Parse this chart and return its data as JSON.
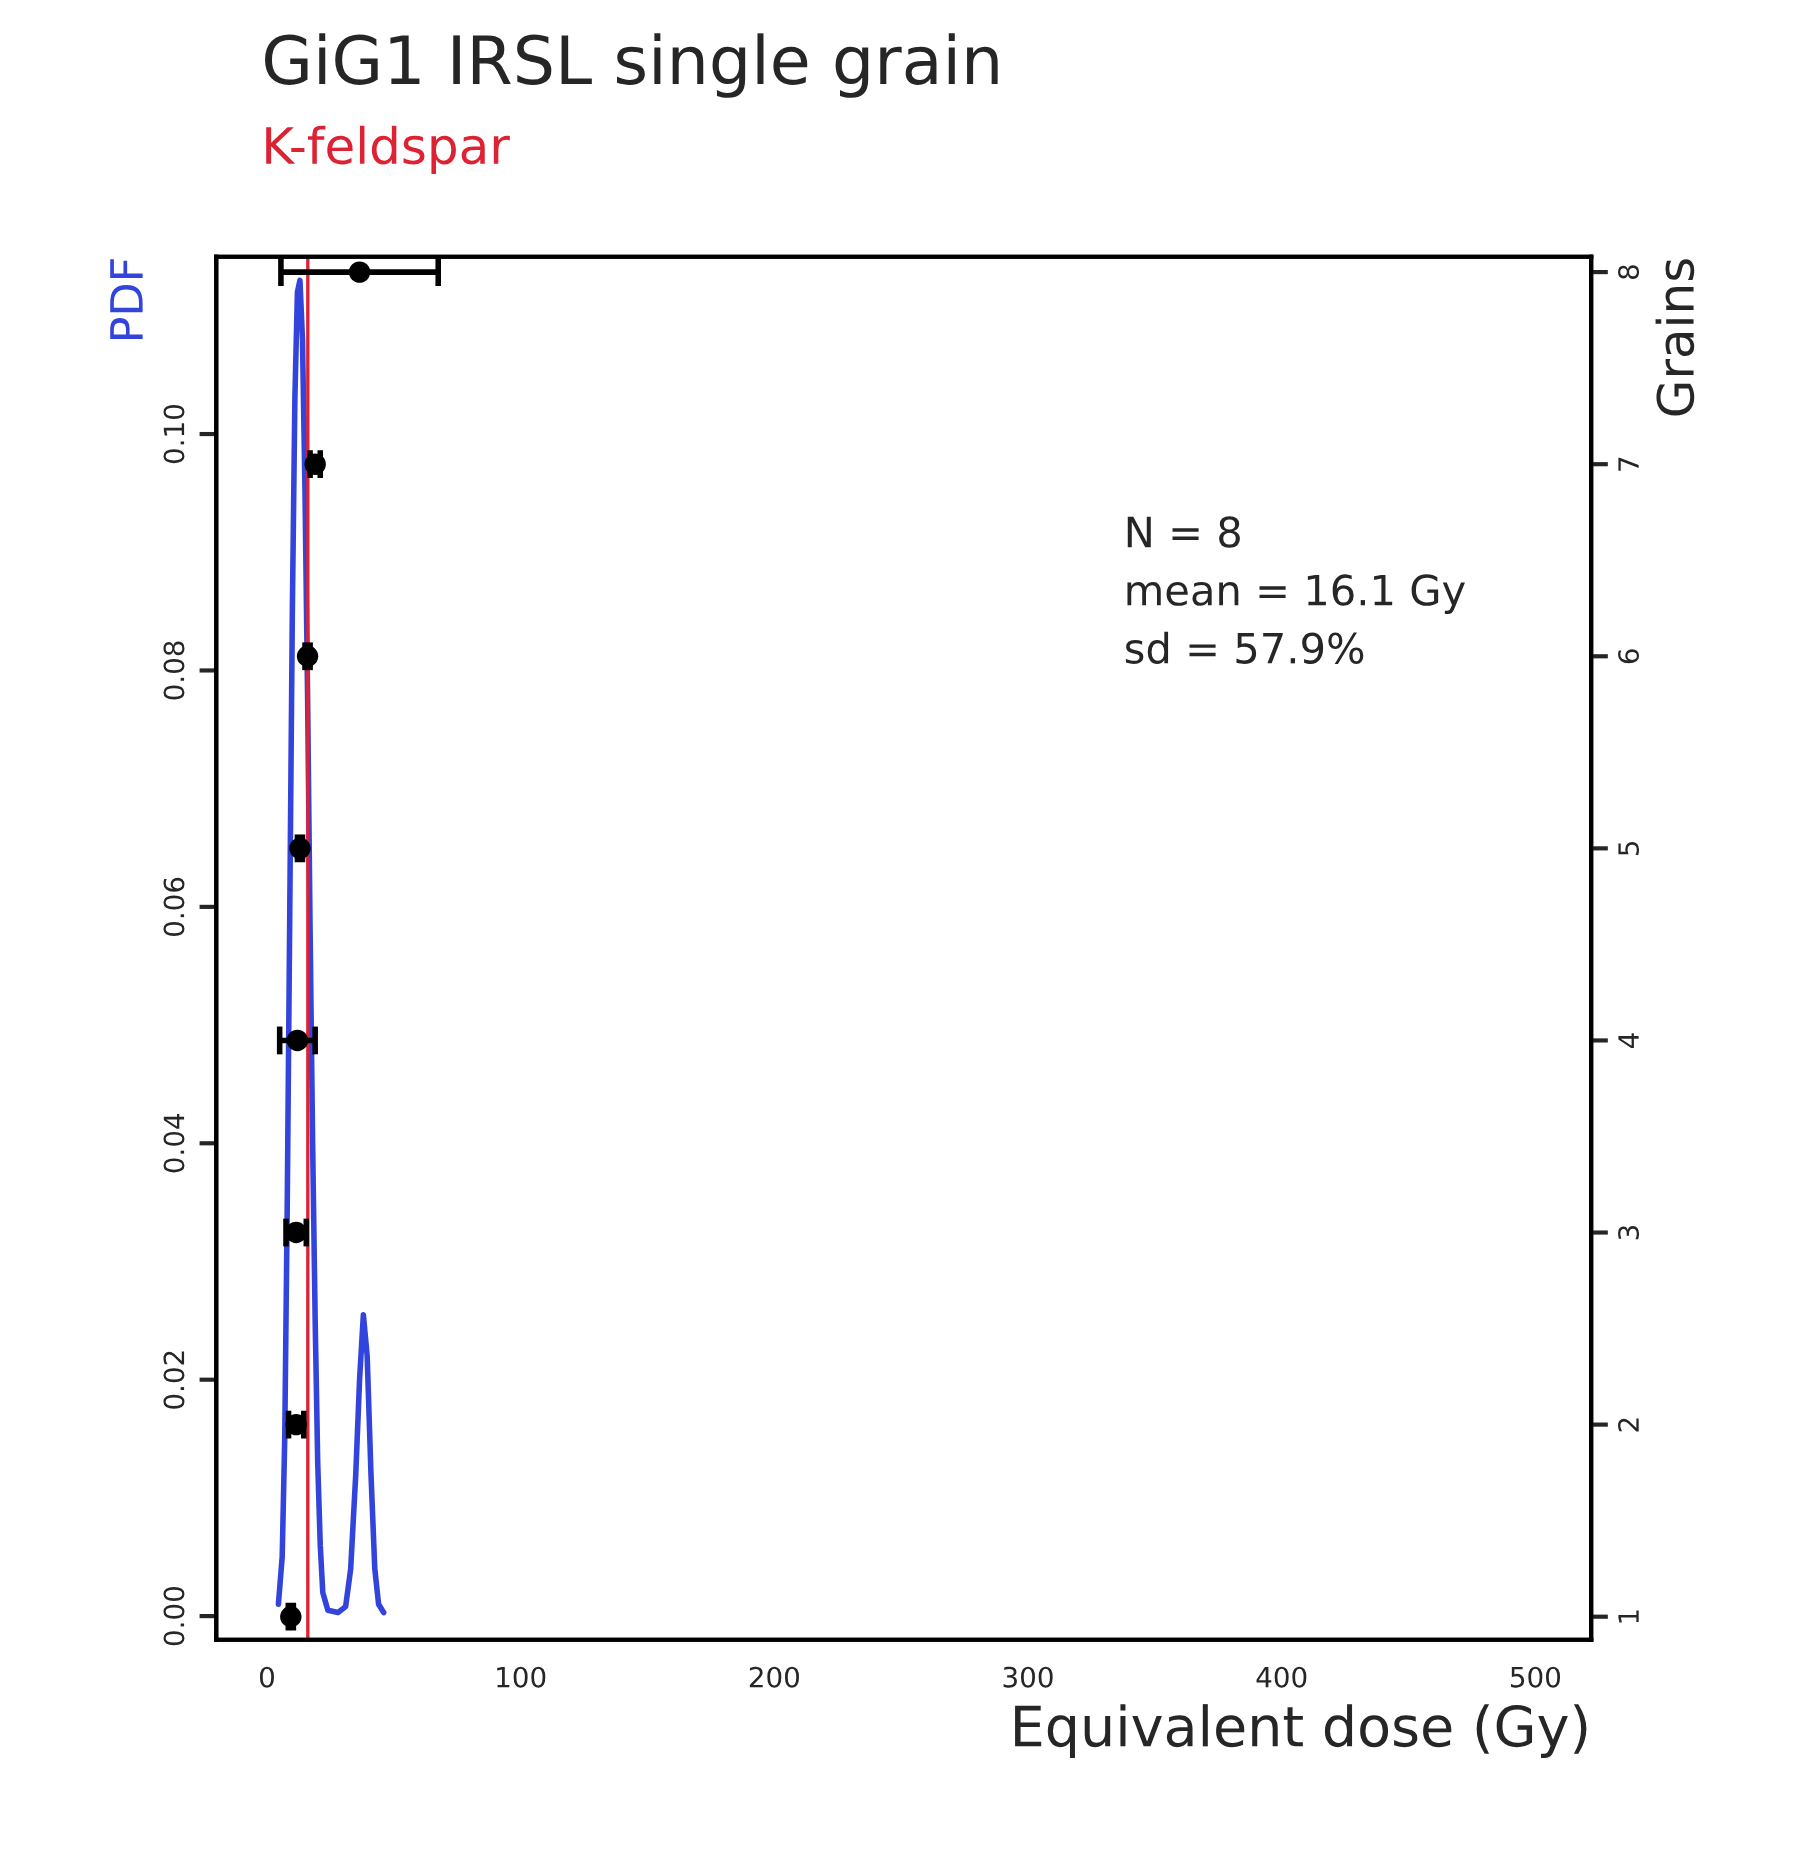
{
  "chart_data": {
    "type": "line",
    "title": "GiG1 IRSL single grain",
    "subtitle": "K-feldspar",
    "xlabel": "Equivalent dose (Gy)",
    "ylabel": "PDF",
    "y2label": "Grains",
    "annotations": [
      "N = 8",
      "mean = 16.1 Gy",
      "sd = 57.9%"
    ],
    "series": [
      {
        "color": "#3344dd",
        "x": [
          4.5,
          6,
          7,
          8,
          9,
          10,
          11,
          12,
          13,
          14,
          15,
          16,
          17,
          18,
          19,
          20,
          21,
          22,
          24,
          28,
          31,
          33,
          35,
          36.5,
          38,
          39.5,
          41,
          42.5,
          44,
          46
        ],
        "values": [
          0.001,
          0.005,
          0.015,
          0.035,
          0.06,
          0.085,
          0.103,
          0.112,
          0.113,
          0.108,
          0.095,
          0.078,
          0.058,
          0.04,
          0.025,
          0.013,
          0.006,
          0.002,
          0.0005,
          0.0003,
          0.0008,
          0.004,
          0.012,
          0.02,
          0.0255,
          0.022,
          0.012,
          0.004,
          0.001,
          0.0003
        ]
      },
      {
        "type": "scatter",
        "axis": "y2",
        "color": "#000000",
        "marker": "circle",
        "x": [
          9.4,
          11.5,
          11.5,
          12,
          13,
          16,
          19,
          36.5
        ],
        "values": [
          1,
          2,
          3,
          4,
          5,
          6,
          7,
          8
        ],
        "xerrors": [
          1,
          3,
          4,
          7,
          1,
          1,
          2,
          31
        ]
      }
    ],
    "ref_lines": [
      {
        "axis": "x",
        "value": 16.1,
        "color": "#dd2233"
      }
    ],
    "xlim": [
      -20,
      522
    ],
    "xticks": [
      0,
      100,
      200,
      300,
      400,
      500
    ],
    "ylim": [
      -0.002,
      0.115
    ],
    "yticks": [
      {
        "value": 0,
        "label": "0.00"
      },
      0.02,
      0.04,
      0.06,
      0.08,
      {
        "value": 0.1,
        "label": "0.10"
      }
    ],
    "y2lim": [
      0.88,
      8.08
    ],
    "y2ticks": [
      1,
      2,
      3,
      4,
      5,
      6,
      7,
      8
    ],
    "grid": false,
    "legend": false
  }
}
